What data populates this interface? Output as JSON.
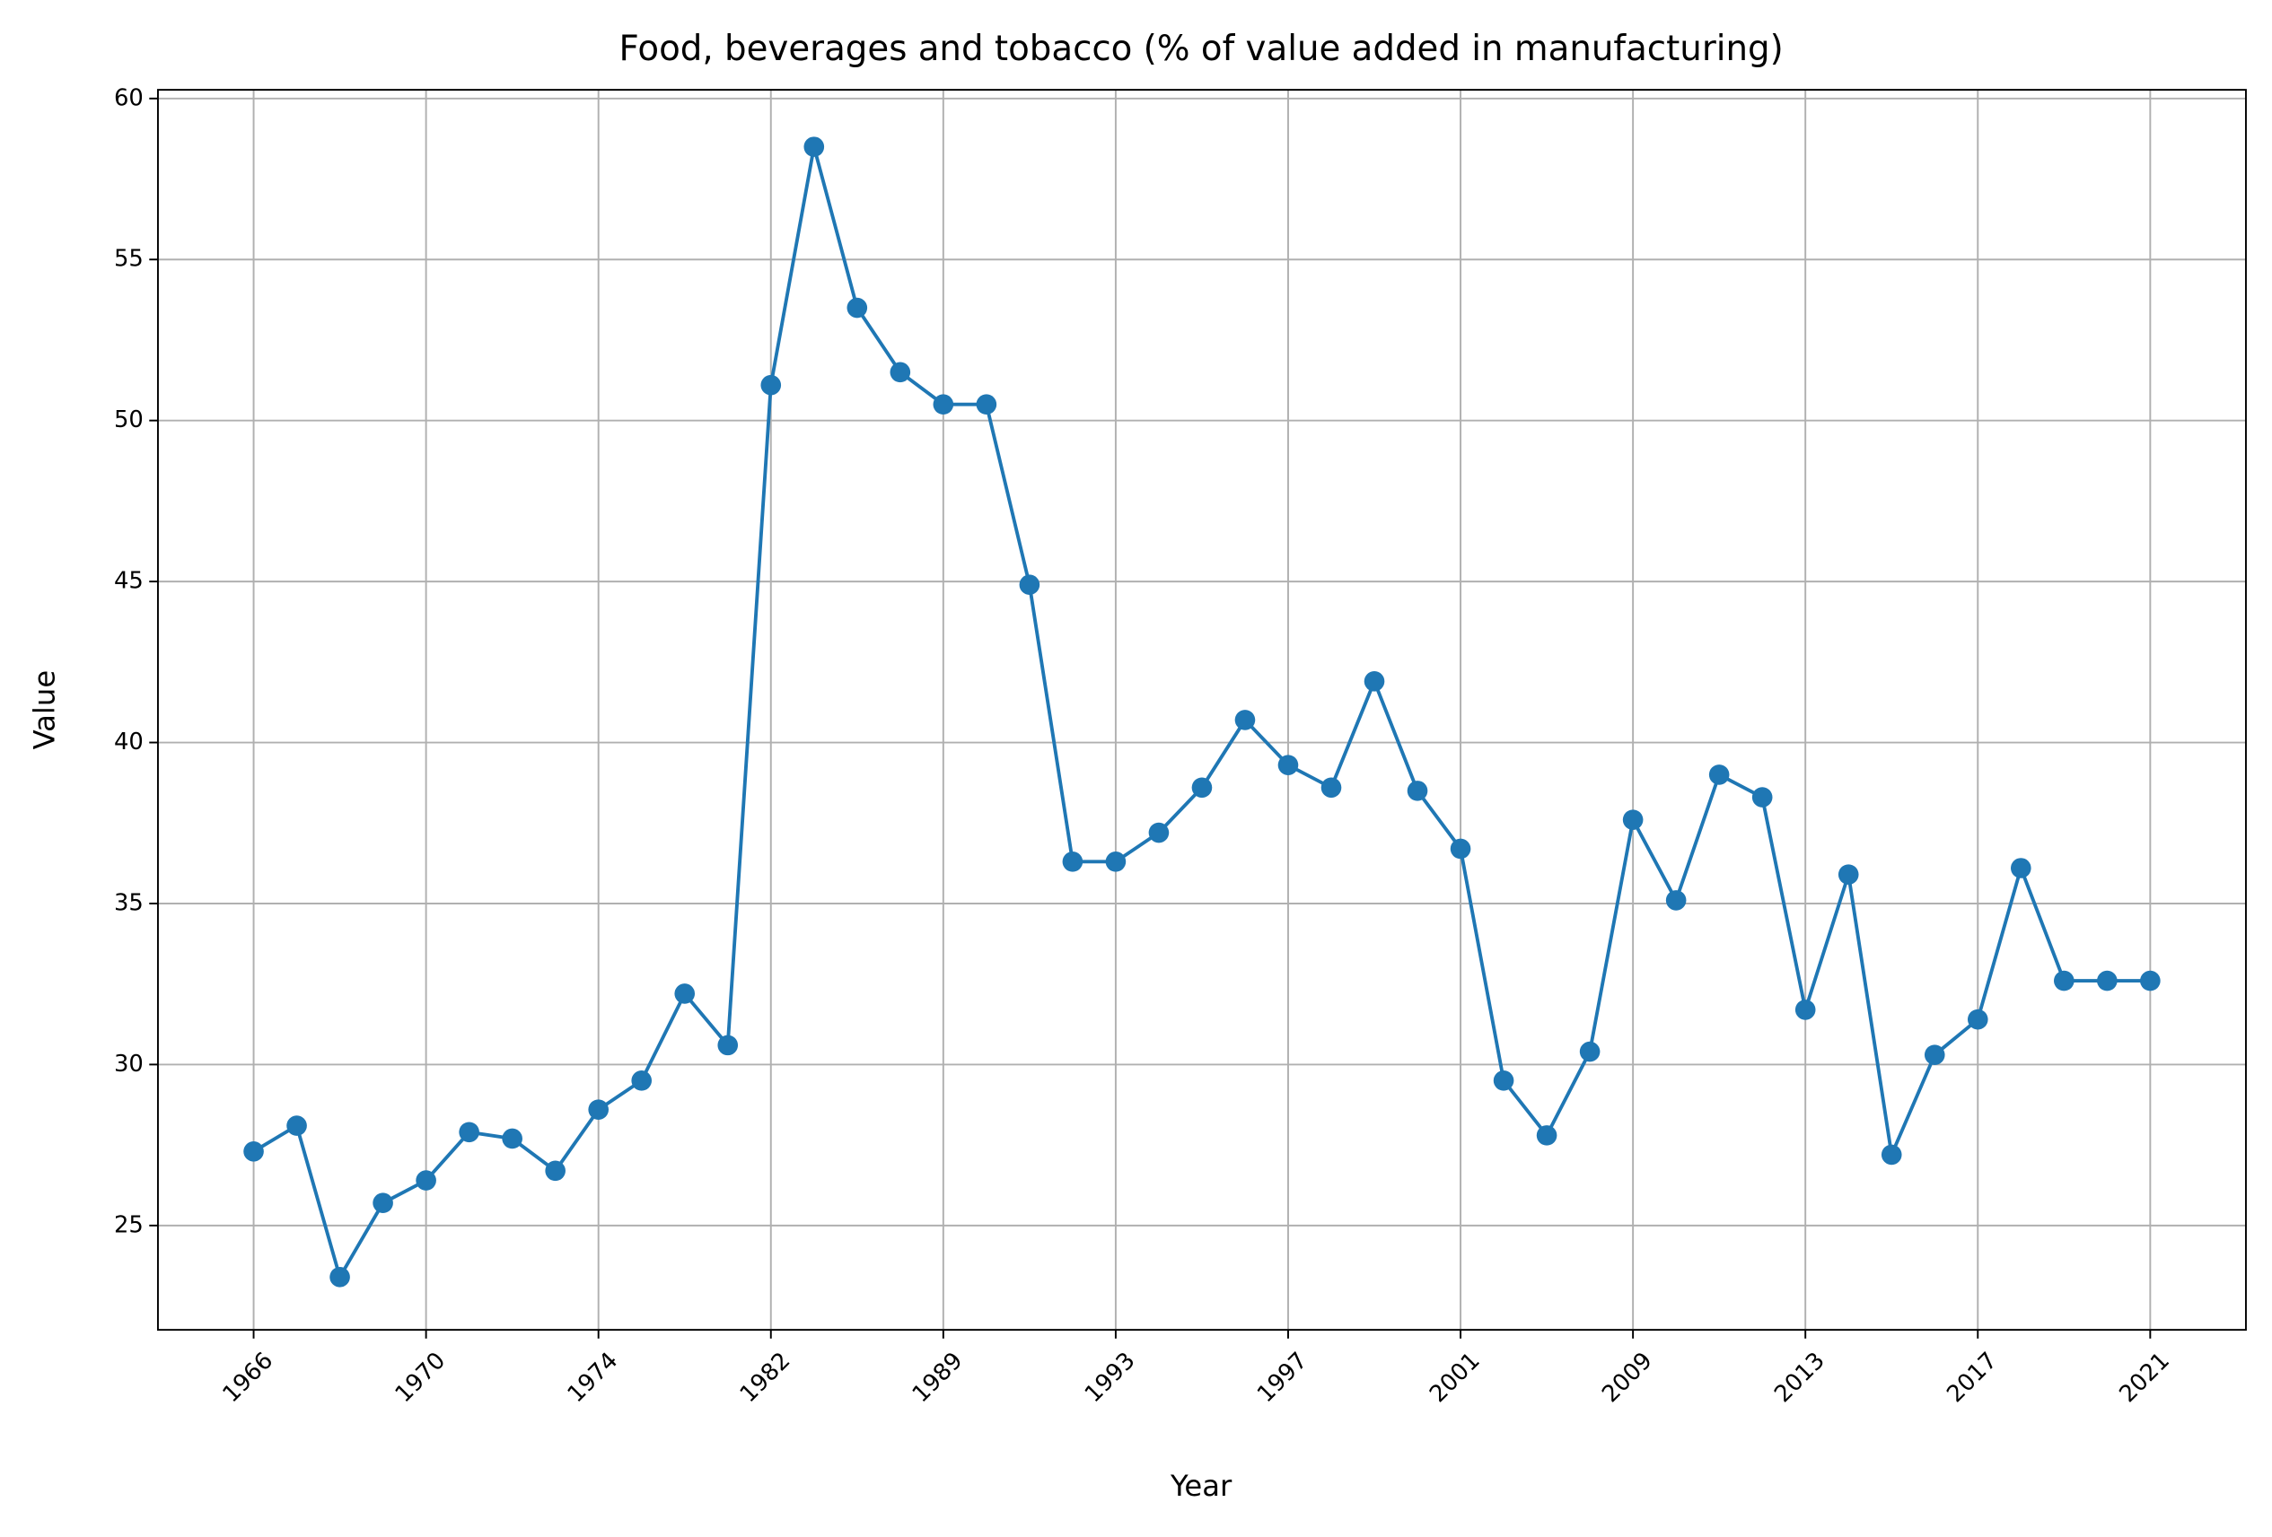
{
  "chart_data": {
    "type": "line",
    "title": "Food, beverages and tobacco (% of value added in manufacturing)",
    "x_label": "Year",
    "y_label": "Value",
    "categories": [
      "1966",
      null,
      null,
      null,
      "1970",
      null,
      null,
      null,
      "1974",
      null,
      null,
      null,
      "1982",
      null,
      null,
      null,
      "1989",
      null,
      null,
      null,
      "1993",
      null,
      null,
      null,
      "1997",
      null,
      null,
      null,
      "2001",
      null,
      null,
      null,
      "2009",
      null,
      null,
      null,
      "2013",
      null,
      null,
      null,
      "2017",
      null,
      null,
      null,
      "2021"
    ],
    "series": [
      {
        "name": "Value",
        "color": "#1f77b4",
        "values": [
          27.3,
          28.1,
          23.4,
          25.7,
          26.4,
          27.9,
          27.7,
          26.7,
          28.6,
          29.5,
          32.2,
          30.6,
          51.1,
          58.5,
          53.5,
          51.5,
          50.5,
          50.5,
          44.9,
          36.3,
          36.3,
          37.2,
          38.6,
          40.7,
          39.3,
          38.6,
          41.9,
          38.5,
          36.7,
          29.5,
          27.8,
          30.4,
          37.6,
          35.1,
          39.0,
          38.3,
          31.7,
          35.9,
          27.2,
          30.3,
          31.4,
          36.1,
          32.6,
          32.6,
          32.6
        ]
      }
    ],
    "ylim": [
      21.76,
      60.27
    ],
    "yticks": [
      25,
      30,
      35,
      40,
      45,
      50,
      55,
      60
    ],
    "grid": true
  }
}
